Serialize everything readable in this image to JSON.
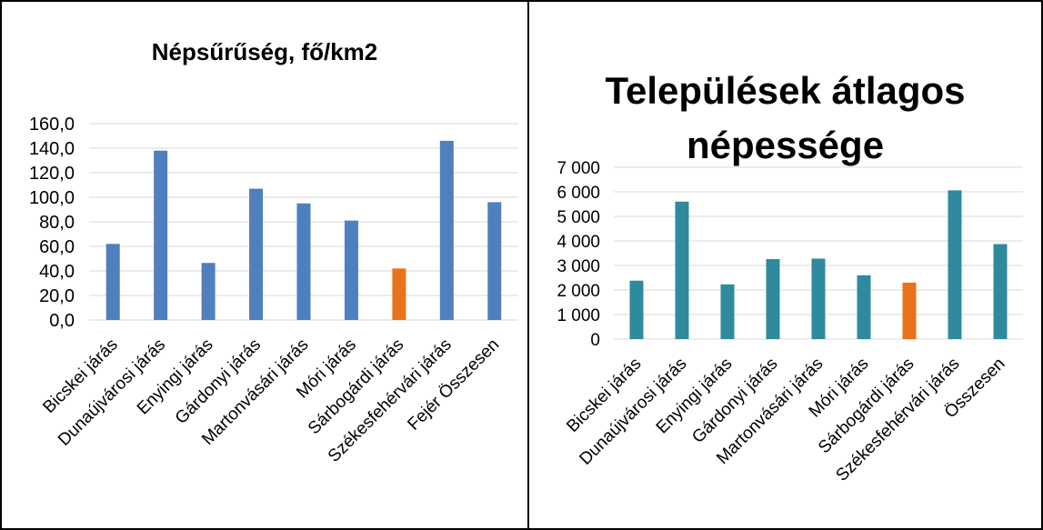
{
  "chart_data": [
    {
      "type": "bar",
      "title": "Népsűrűség, fő/km2",
      "xlabel": "",
      "ylabel": "",
      "categories": [
        "Bicskei járás",
        "Dunaújvárosi járás",
        "Enyingi járás",
        "Gárdonyi járás",
        "Martonvásári járás",
        "Móri járás",
        "Sárbogárdi járás",
        "Székesfehérvári járás",
        "Fejér Összesen"
      ],
      "values": [
        62,
        138,
        46.5,
        107,
        95,
        81,
        42,
        146,
        96
      ],
      "highlight_index": 6,
      "ylim": [
        0,
        160
      ],
      "yticks": [
        "0,0",
        "20,0",
        "40,0",
        "60,0",
        "80,0",
        "100,0",
        "120,0",
        "140,0",
        "160,0"
      ],
      "grid": true,
      "colors": {
        "bar": "#4f7fbe",
        "highlight": "#e8731c",
        "grid": "#d9d9d9"
      }
    },
    {
      "type": "bar",
      "title": "Települések átlagos népessége",
      "xlabel": "",
      "ylabel": "",
      "categories": [
        "Bicskei járás",
        "Dunaújvárosi járás",
        "Enyingi járás",
        "Gárdonyi járás",
        "Martonvásári járás",
        "Móri járás",
        "Sárbogárdi járás",
        "Székesfehérvári járás",
        "Összesen"
      ],
      "values": [
        2380,
        5600,
        2230,
        3260,
        3280,
        2600,
        2300,
        6060,
        3870
      ],
      "highlight_index": 6,
      "ylim": [
        0,
        7000
      ],
      "yticks": [
        "0",
        "1 000",
        "2 000",
        "3 000",
        "4 000",
        "5 000",
        "6 000",
        "7 000"
      ],
      "grid": true,
      "colors": {
        "bar": "#2f8a9e",
        "highlight": "#e8731c",
        "grid": "#d9d9d9"
      }
    }
  ]
}
